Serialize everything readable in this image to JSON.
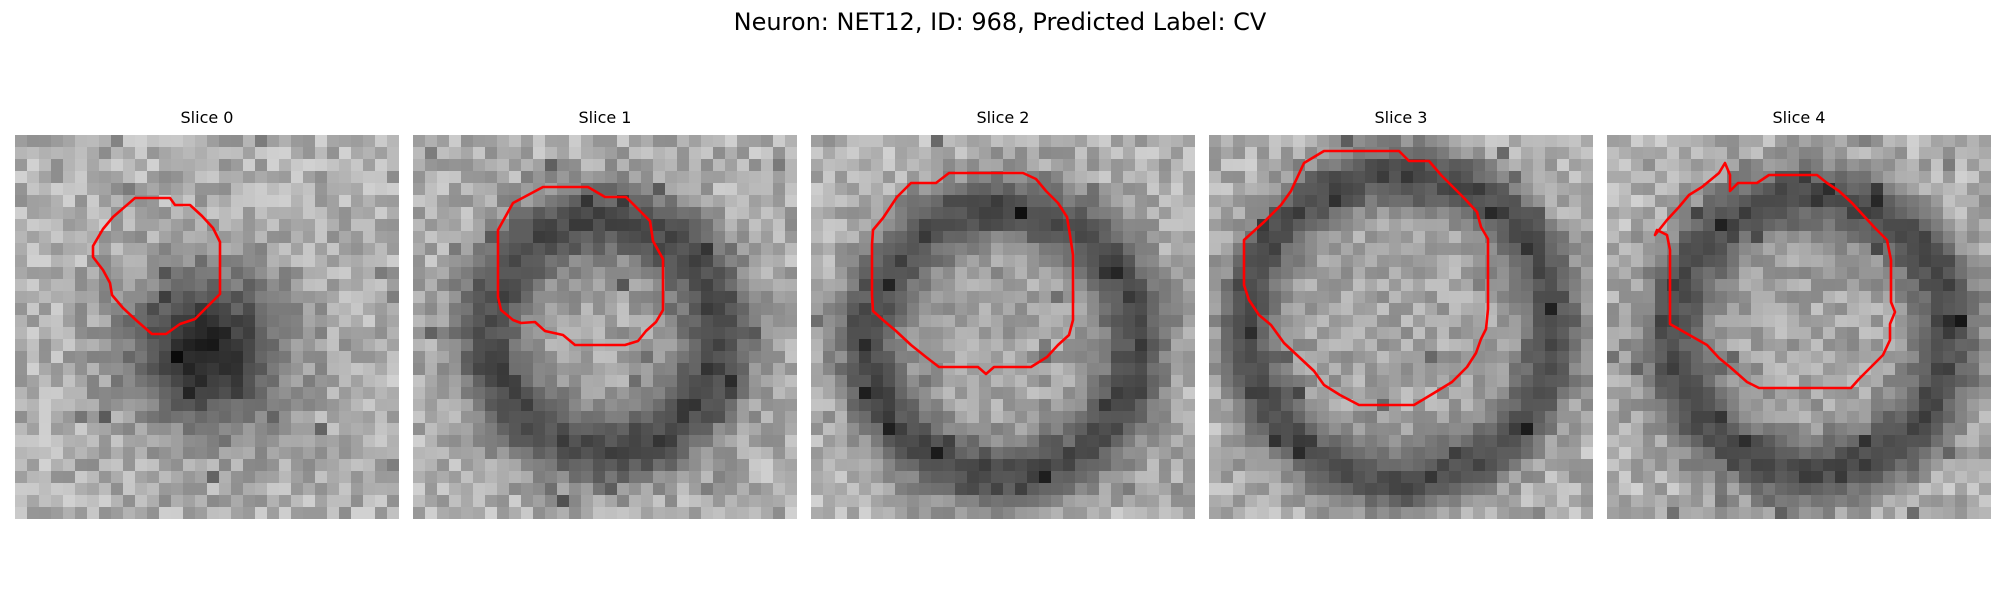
{
  "figure": {
    "title": "Neuron: NET12, ID: 968, Predicted Label: CV"
  },
  "outline_color": "#ff0000",
  "panels": [
    {
      "title": "Slice 0",
      "image": "grayscale-microscopy-slice",
      "overlay": "red-contour"
    },
    {
      "title": "Slice 1",
      "image": "grayscale-microscopy-slice",
      "overlay": "red-contour"
    },
    {
      "title": "Slice 2",
      "image": "grayscale-microscopy-slice",
      "overlay": "red-contour"
    },
    {
      "title": "Slice 3",
      "image": "grayscale-microscopy-slice",
      "overlay": "red-contour"
    },
    {
      "title": "Slice 4",
      "image": "grayscale-microscopy-slice",
      "overlay": "red-contour"
    }
  ]
}
